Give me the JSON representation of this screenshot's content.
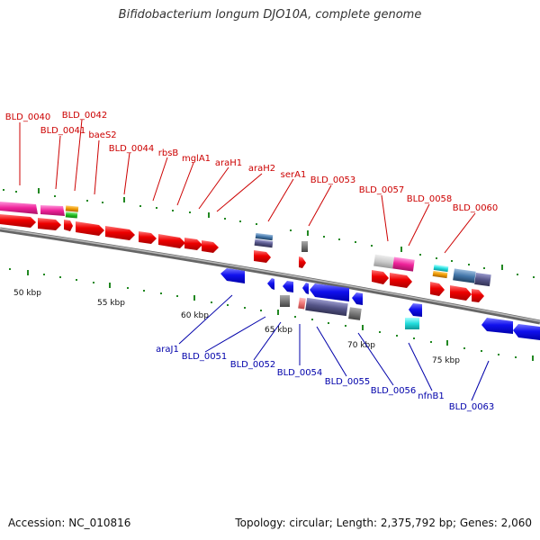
{
  "title": "Bifidobacterium longum DJO10A, complete genome",
  "footer": {
    "accession": "Accession: NC_010816",
    "summary": "Topology: circular; Length: 2,375,792 bp; Genes: 2,060"
  },
  "colors": {
    "forward_label": "#cc0000",
    "reverse_label": "#0000aa",
    "tick": "#228822",
    "backbone": "#888888"
  },
  "scale_labels": [
    "50 kbp",
    "55 kbp",
    "60 kbp",
    "65 kbp",
    "70 kbp",
    "75 kbp"
  ],
  "forward_labels": [
    "BLD_0040",
    "BLD_0041",
    "BLD_0042",
    "baeS2",
    "BLD_0044",
    "rbsB",
    "mglA1",
    "araH1",
    "araH2",
    "serA1",
    "BLD_0053",
    "BLD_0057",
    "BLD_0058",
    "BLD_0060"
  ],
  "reverse_labels": [
    "araJ1",
    "BLD_0051",
    "BLD_0052",
    "BLD_0054",
    "BLD_0055",
    "BLD_0056",
    "nfnB1",
    "BLD_0063"
  ]
}
